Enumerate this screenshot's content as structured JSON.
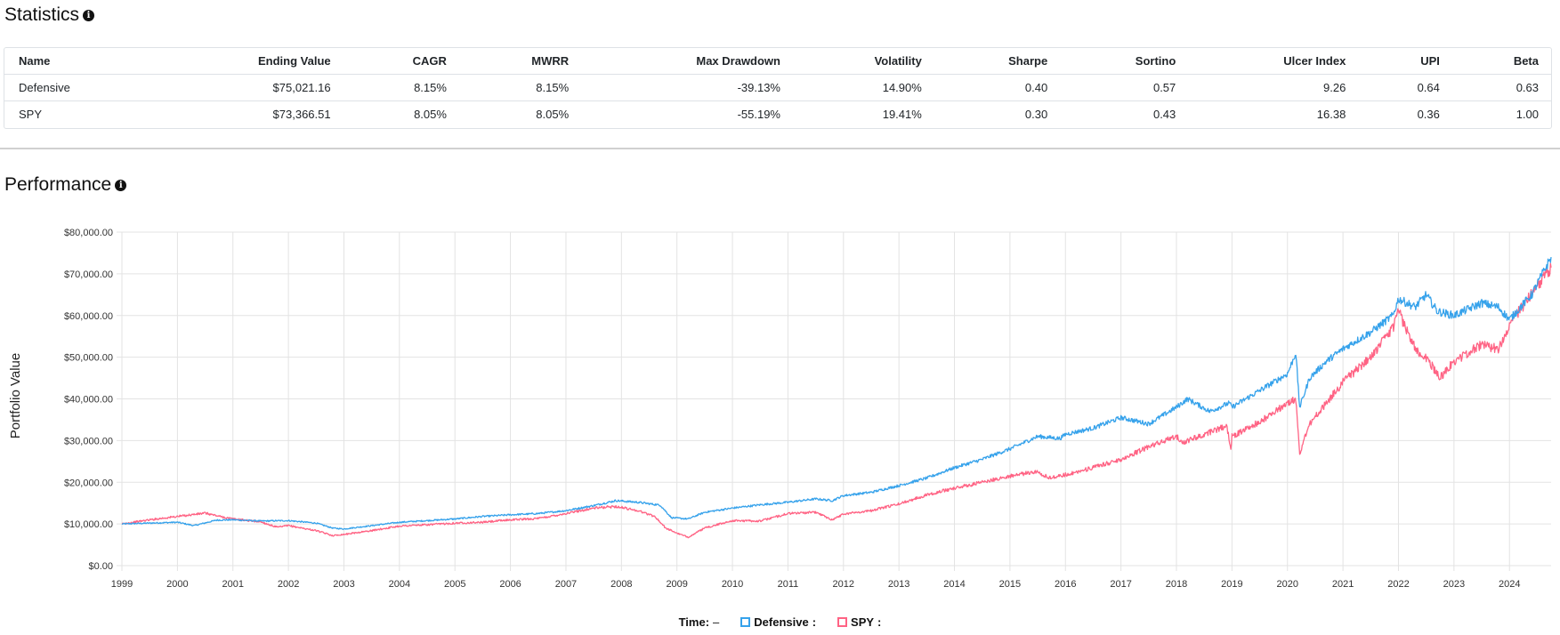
{
  "stats": {
    "title": "Statistics",
    "info_icon": "info-circle-icon",
    "columns": [
      "Name",
      "Ending Value",
      "CAGR",
      "MWRR",
      "Max Drawdown",
      "Volatility",
      "Sharpe",
      "Sortino",
      "Ulcer Index",
      "UPI",
      "Beta"
    ],
    "rows": [
      [
        "Defensive",
        "$75,021.16",
        "8.15%",
        "8.15%",
        "-39.13%",
        "14.90%",
        "0.40",
        "0.57",
        "9.26",
        "0.64",
        "0.63"
      ],
      [
        "SPY",
        "$73,366.51",
        "8.05%",
        "8.05%",
        "-55.19%",
        "19.41%",
        "0.30",
        "0.43",
        "16.38",
        "0.36",
        "1.00"
      ]
    ]
  },
  "performance": {
    "title": "Performance",
    "info_icon": "info-circle-icon"
  },
  "chart_data": {
    "type": "line",
    "ylabel": "Portfolio Value",
    "xlabel": "",
    "x_ticks": [
      "1999",
      "2000",
      "2001",
      "2002",
      "2003",
      "2004",
      "2005",
      "2006",
      "2007",
      "2008",
      "2009",
      "2010",
      "2011",
      "2012",
      "2013",
      "2014",
      "2015",
      "2016",
      "2017",
      "2018",
      "2019",
      "2020",
      "2021",
      "2022",
      "2023",
      "2024"
    ],
    "y_ticks": [
      "$0.00",
      "$10,000.00",
      "$20,000.00",
      "$30,000.00",
      "$40,000.00",
      "$50,000.00",
      "$60,000.00",
      "$70,000.00",
      "$80,000.00"
    ],
    "xlim": [
      1999.0,
      2024.75
    ],
    "ylim": [
      0,
      80000
    ],
    "grid": true,
    "legend_position": "bottom",
    "legend": {
      "time_label": "Time:",
      "time_value": "–"
    },
    "series": [
      {
        "name": "Defensive",
        "color": "#36a2eb",
        "x": [
          1999.0,
          1999.5,
          2000.0,
          2000.3,
          2000.7,
          2001.0,
          2001.5,
          2002.0,
          2002.5,
          2002.8,
          2003.0,
          2003.5,
          2004.0,
          2004.5,
          2005.0,
          2005.5,
          2006.0,
          2006.5,
          2007.0,
          2007.5,
          2007.9,
          2008.3,
          2008.7,
          2008.9,
          2009.2,
          2009.5,
          2010.0,
          2010.5,
          2011.0,
          2011.5,
          2011.8,
          2012.0,
          2012.5,
          2013.0,
          2013.5,
          2014.0,
          2014.5,
          2015.0,
          2015.5,
          2015.9,
          2016.0,
          2016.5,
          2017.0,
          2017.5,
          2018.0,
          2018.2,
          2018.6,
          2018.95,
          2019.0,
          2019.5,
          2020.0,
          2020.15,
          2020.22,
          2020.4,
          2020.7,
          2021.0,
          2021.5,
          2021.9,
          2022.0,
          2022.3,
          2022.5,
          2022.7,
          2023.0,
          2023.5,
          2023.8,
          2024.0,
          2024.4,
          2024.75
        ],
        "y": [
          10000,
          10200,
          10400,
          9600,
          10900,
          11000,
          10700,
          10800,
          10200,
          9000,
          8800,
          9600,
          10400,
          10800,
          11200,
          11800,
          12200,
          12500,
          13200,
          14400,
          15600,
          15200,
          14500,
          11500,
          11200,
          12800,
          13800,
          14600,
          15200,
          16000,
          15600,
          16800,
          17600,
          19200,
          21000,
          23500,
          25500,
          28000,
          31000,
          30500,
          31500,
          33000,
          35500,
          34000,
          38000,
          40000,
          37000,
          39000,
          38000,
          42000,
          46000,
          51000,
          38000,
          45000,
          49000,
          52000,
          56000,
          60000,
          64000,
          62000,
          65000,
          61000,
          60000,
          63000,
          62000,
          59000,
          65000,
          74000
        ]
      },
      {
        "name": "SPY",
        "color": "#ff6384",
        "x": [
          1999.0,
          1999.5,
          2000.0,
          2000.5,
          2000.8,
          2001.0,
          2001.5,
          2001.8,
          2002.0,
          2002.5,
          2002.8,
          2003.0,
          2003.5,
          2004.0,
          2004.5,
          2005.0,
          2005.5,
          2006.0,
          2006.5,
          2007.0,
          2007.5,
          2007.9,
          2008.3,
          2008.6,
          2008.8,
          2009.0,
          2009.2,
          2009.5,
          2010.0,
          2010.5,
          2011.0,
          2011.5,
          2011.8,
          2012.0,
          2012.5,
          2013.0,
          2013.5,
          2014.0,
          2014.5,
          2015.0,
          2015.5,
          2015.7,
          2016.0,
          2016.5,
          2017.0,
          2017.5,
          2018.0,
          2018.1,
          2018.5,
          2018.9,
          2018.98,
          2019.0,
          2019.5,
          2020.0,
          2020.15,
          2020.22,
          2020.4,
          2020.7,
          2021.0,
          2021.5,
          2021.9,
          2022.0,
          2022.3,
          2022.5,
          2022.75,
          2023.0,
          2023.5,
          2023.8,
          2024.0,
          2024.4,
          2024.6,
          2024.75
        ],
        "y": [
          10000,
          11000,
          11800,
          12600,
          11700,
          11200,
          10500,
          9200,
          9600,
          8400,
          7200,
          7500,
          8400,
          9500,
          9800,
          10200,
          10400,
          11000,
          11300,
          12500,
          13800,
          14200,
          13200,
          11800,
          9000,
          7800,
          6800,
          9000,
          10800,
          10700,
          12500,
          12800,
          11000,
          12400,
          13200,
          14800,
          17000,
          18600,
          20000,
          21500,
          22600,
          21000,
          21800,
          23500,
          25500,
          28500,
          31000,
          29500,
          31500,
          33500,
          28500,
          31000,
          34500,
          39000,
          40000,
          27000,
          34000,
          39000,
          44000,
          50000,
          57000,
          61000,
          52000,
          50000,
          45000,
          49000,
          53000,
          52000,
          58000,
          65000,
          69000,
          71500
        ]
      }
    ]
  }
}
